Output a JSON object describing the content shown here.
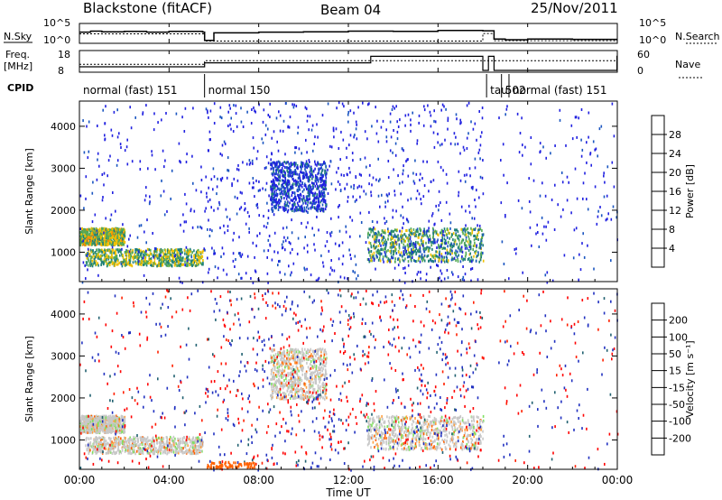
{
  "header": {
    "title": "Blackstone (fitACF)",
    "beam": "Beam 04",
    "date": "25/Nov/2011"
  },
  "panel_labels": {
    "nsky": "N.Sky",
    "nsearch": "N.Search",
    "freq": "Freq.",
    "freq_unit": "[MHz]",
    "nave": "Nave",
    "cpid": "CPID"
  },
  "chart_data": [
    {
      "type": "line",
      "name": "noise",
      "yticks_left": [
        "10^5",
        "10^0"
      ],
      "yticks_right": [
        "10^5",
        "10^0"
      ],
      "series": [
        {
          "name": "N.Sky",
          "x": [
            "00:00",
            "00:30",
            "01:00",
            "02:00",
            "03:00",
            "04:00",
            "05:30",
            "05:35",
            "06:00",
            "08:00",
            "10:00",
            "12:00",
            "14:00",
            "16:00",
            "18:00",
            "18:30",
            "19:00",
            "20:00",
            "22:00",
            "23:59"
          ],
          "values": [
            3,
            3.3,
            3.1,
            3.2,
            3,
            3.2,
            3,
            0.6,
            2.8,
            3,
            3.1,
            3.3,
            3.2,
            3.5,
            3.4,
            1.0,
            0.8,
            1.0,
            0.9,
            0.6
          ]
        },
        {
          "name": "N.Search",
          "x": [
            "00:00",
            "05:30",
            "05:35",
            "18:00",
            "18:30",
            "23:59"
          ],
          "values": [
            2.5,
            2.5,
            0.4,
            2.6,
            0.5,
            0.4
          ]
        }
      ]
    },
    {
      "type": "line",
      "name": "frequency",
      "yticks_left": [
        "18",
        "8"
      ],
      "yticks_right": [
        "60",
        "0"
      ],
      "series": [
        {
          "name": "Freq.",
          "x": [
            "00:00",
            "05:30",
            "05:35",
            "12:55",
            "13:00",
            "17:55",
            "18:00",
            "18:15",
            "18:30",
            "23:59"
          ],
          "values": [
            10,
            10,
            12.2,
            12.2,
            15.8,
            15.8,
            8,
            15.8,
            8,
            15.8
          ]
        },
        {
          "name": "Nave",
          "x": [
            "00:00",
            "05:30",
            "05:35",
            "23:59"
          ],
          "values": [
            20,
            20,
            32,
            32
          ]
        }
      ]
    },
    {
      "type": "table",
      "name": "cpid",
      "segments": [
        {
          "start": "00:00",
          "end": "05:35",
          "label": "normal (fast) 151"
        },
        {
          "start": "05:35",
          "end": "18:10",
          "label": "normal 150"
        },
        {
          "start": "18:10",
          "end": "18:50",
          "label": "tau"
        },
        {
          "start": "18:50",
          "end": "19:10",
          "label": "502"
        },
        {
          "start": "19:10",
          "end": "24:00",
          "label": "normal (fast) 151"
        }
      ]
    },
    {
      "type": "heatmap",
      "name": "power",
      "ylabel": "Slant Range [km]",
      "yticks": [
        "1000",
        "2000",
        "3000",
        "4000"
      ],
      "ylim": [
        300,
        4600
      ],
      "xlim": [
        "00:00",
        "24:00"
      ],
      "colorbar": {
        "label": "Power [dB]",
        "ticks": [
          "4",
          "8",
          "12",
          "16",
          "20",
          "24",
          "28"
        ],
        "colors": [
          "#2020e0",
          "#1a55c0",
          "#1f7f7a",
          "#55aa55",
          "#f0c000",
          "#ff8c00",
          "#ff4000",
          "#ff0000"
        ]
      },
      "echo_bands": [
        {
          "start": "00:00",
          "end": "02:00",
          "range_from": 1200,
          "range_to": 1600,
          "level": 16
        },
        {
          "start": "00:15",
          "end": "05:30",
          "range_from": 700,
          "range_to": 1100,
          "level": 14
        },
        {
          "start": "08:30",
          "end": "11:00",
          "range_from": 2000,
          "range_to": 3200,
          "level": 4
        },
        {
          "start": "12:50",
          "end": "18:00",
          "range_from": 800,
          "range_to": 1600,
          "level": 12
        }
      ]
    },
    {
      "type": "heatmap",
      "name": "velocity",
      "ylabel": "Slant Range [km]",
      "yticks": [
        "1000",
        "2000",
        "3000",
        "4000"
      ],
      "ylim": [
        300,
        4600
      ],
      "xlim": [
        "00:00",
        "24:00"
      ],
      "colorbar": {
        "label": "Velocity [m s⁻¹]",
        "ticks": [
          "200",
          "100",
          "50",
          "15",
          "-15",
          "-50",
          "-100",
          "-200"
        ],
        "colors": [
          "#2030c0",
          "#206070",
          "#40a040",
          "#80e060",
          "#c8c8c8",
          "#ffa040",
          "#ff6000",
          "#ff2000",
          "#ff0000"
        ]
      }
    }
  ],
  "xaxis": {
    "ticks": [
      "00:00",
      "04:00",
      "08:00",
      "12:00",
      "16:00",
      "20:00",
      "00:00"
    ],
    "label": "Time UT"
  }
}
